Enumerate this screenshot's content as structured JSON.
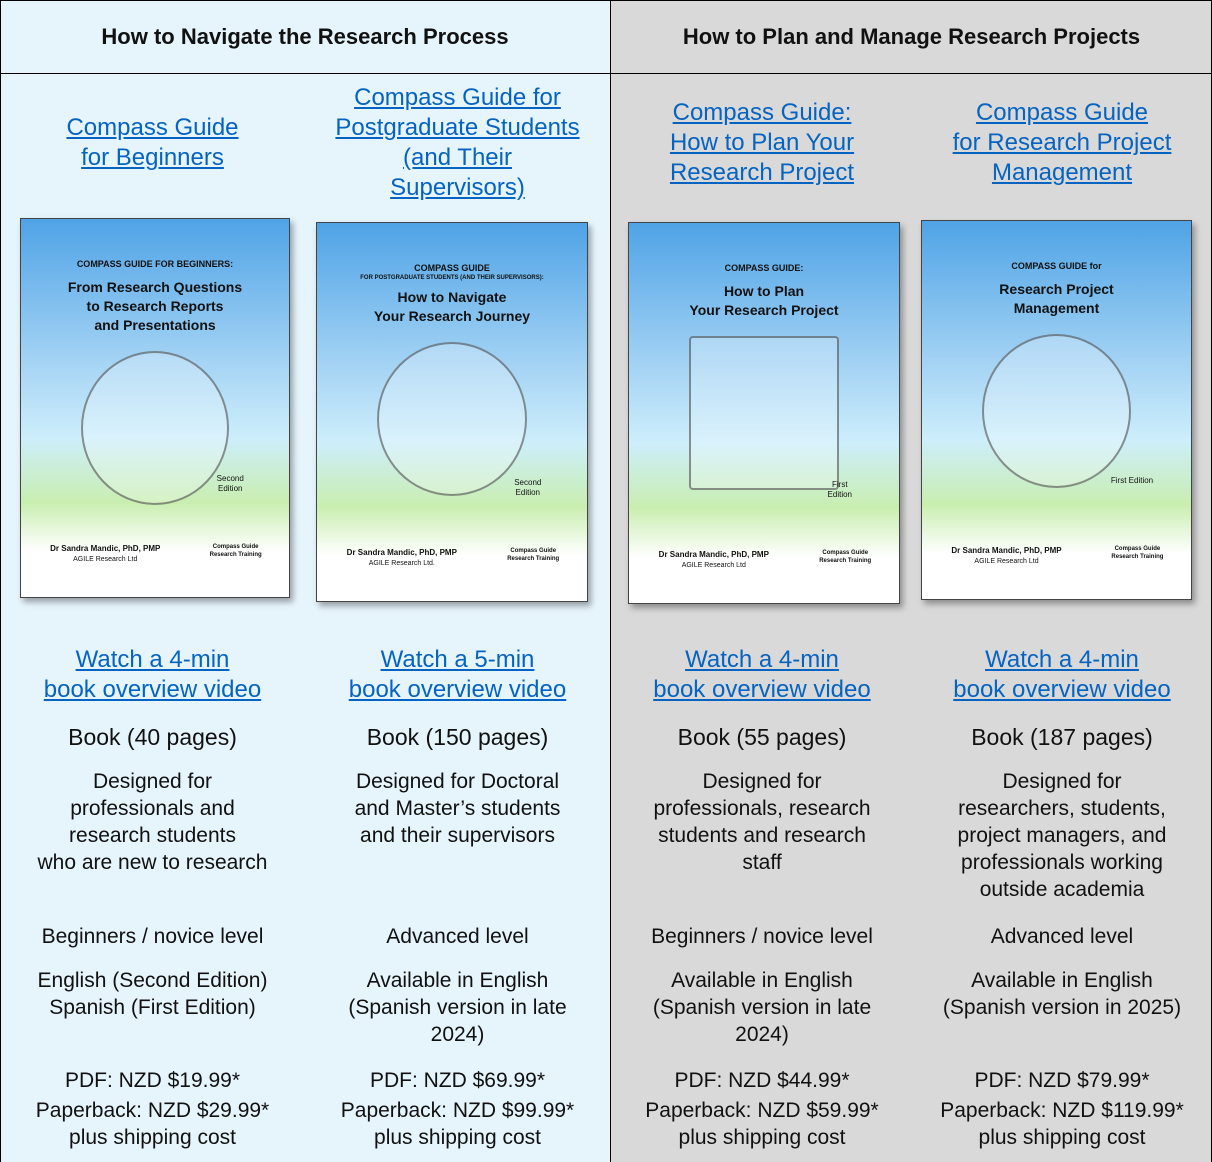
{
  "header": {
    "groups": [
      "How to Navigate the Research Process",
      "How to Plan and Manage Research Projects"
    ]
  },
  "books": [
    {
      "title_lines": [
        "Compass Guide",
        "for Beginners"
      ],
      "cover": {
        "heading": "COMPASS GUIDE FOR BEGINNERS:",
        "title_lines": [
          "From Research Questions",
          "to Research Reports",
          "and Presentations"
        ],
        "edition_lines": [
          "Second",
          "Edition"
        ],
        "author": "Dr Sandra Mandic, PhD, PMP",
        "publisher": "AGILE Research Ltd",
        "brand_lines": [
          "Compass Guide",
          "Research Training"
        ]
      },
      "video_lines": [
        "Watch a 4-min",
        "book overview video"
      ],
      "length": "Book (40 pages)",
      "audience_lines": [
        "Designed for",
        "professionals and",
        "research students",
        "who are new to research"
      ],
      "level": "Beginners / novice level",
      "language_lines": [
        "English (Second Edition)",
        "Spanish (First Edition)"
      ],
      "pdf": "PDF: NZD $19.99*",
      "paperback": "Paperback: NZD $29.99*",
      "shipping": "plus shipping cost"
    },
    {
      "title_lines": [
        "Compass Guide for",
        "Postgraduate Students",
        "(and Their",
        "Supervisors)"
      ],
      "cover": {
        "heading": "COMPASS GUIDE",
        "subheading": "FOR POSTGRADUATE STUDENTS (AND THEIR SUPERVISORS):",
        "title_lines": [
          "How to Navigate",
          "Your Research Journey"
        ],
        "edition_lines": [
          "Second",
          "Edition"
        ],
        "author": "Dr Sandra Mandic, PhD, PMP",
        "publisher": "AGILE Research Ltd.",
        "brand_lines": [
          "Compass Guide",
          "Research Training"
        ]
      },
      "video_lines": [
        "Watch a 5-min",
        "book overview video"
      ],
      "length": "Book (150 pages)",
      "audience_lines": [
        "Designed for Doctoral",
        "and Master’s students",
        "and their supervisors"
      ],
      "level": "Advanced level",
      "language_lines": [
        "Available in English",
        "(Spanish version in late",
        "2024)"
      ],
      "pdf": "PDF: NZD $69.99*",
      "paperback": "Paperback: NZD $99.99*",
      "shipping": "plus shipping cost"
    },
    {
      "title_lines": [
        "Compass Guide:",
        "How to Plan Your",
        "Research Project"
      ],
      "cover": {
        "heading": "COMPASS GUIDE:",
        "title_lines": [
          "How to Plan",
          "Your Research Project"
        ],
        "edition_lines": [
          "First",
          "Edition"
        ],
        "author": "Dr Sandra Mandic, PhD, PMP",
        "publisher": "AGILE Research Ltd",
        "brand_lines": [
          "Compass Guide",
          "Research Training"
        ]
      },
      "video_lines": [
        "Watch a 4-min",
        "book overview video"
      ],
      "length": "Book (55 pages)",
      "audience_lines": [
        "Designed for",
        "professionals, research",
        "students and research",
        "staff"
      ],
      "level": "Beginners / novice level",
      "language_lines": [
        "Available in English",
        "(Spanish version in late",
        "2024)"
      ],
      "pdf": "PDF: NZD $44.99*",
      "paperback": "Paperback: NZD $59.99*",
      "shipping": "plus shipping cost"
    },
    {
      "title_lines": [
        "Compass Guide",
        "for Research Project",
        "Management"
      ],
      "cover": {
        "heading": "COMPASS GUIDE for",
        "title_lines": [
          "Research Project",
          "Management"
        ],
        "edition_lines": [
          "First Edition"
        ],
        "author": "Dr Sandra Mandic, PhD, PMP",
        "publisher": "AGILE Research Ltd",
        "brand_lines": [
          "Compass Guide",
          "Research Training"
        ]
      },
      "video_lines": [
        "Watch a 4-min",
        "book overview video"
      ],
      "length": "Book (187 pages)",
      "audience_lines": [
        "Designed for",
        "researchers, students,",
        "project managers, and",
        "professionals working",
        "outside academia"
      ],
      "level": "Advanced level",
      "language_lines": [
        "Available in English",
        "(Spanish version in 2025)"
      ],
      "pdf": "PDF: NZD $79.99*",
      "paperback": "Paperback: NZD $119.99*",
      "shipping": "plus shipping cost"
    }
  ]
}
